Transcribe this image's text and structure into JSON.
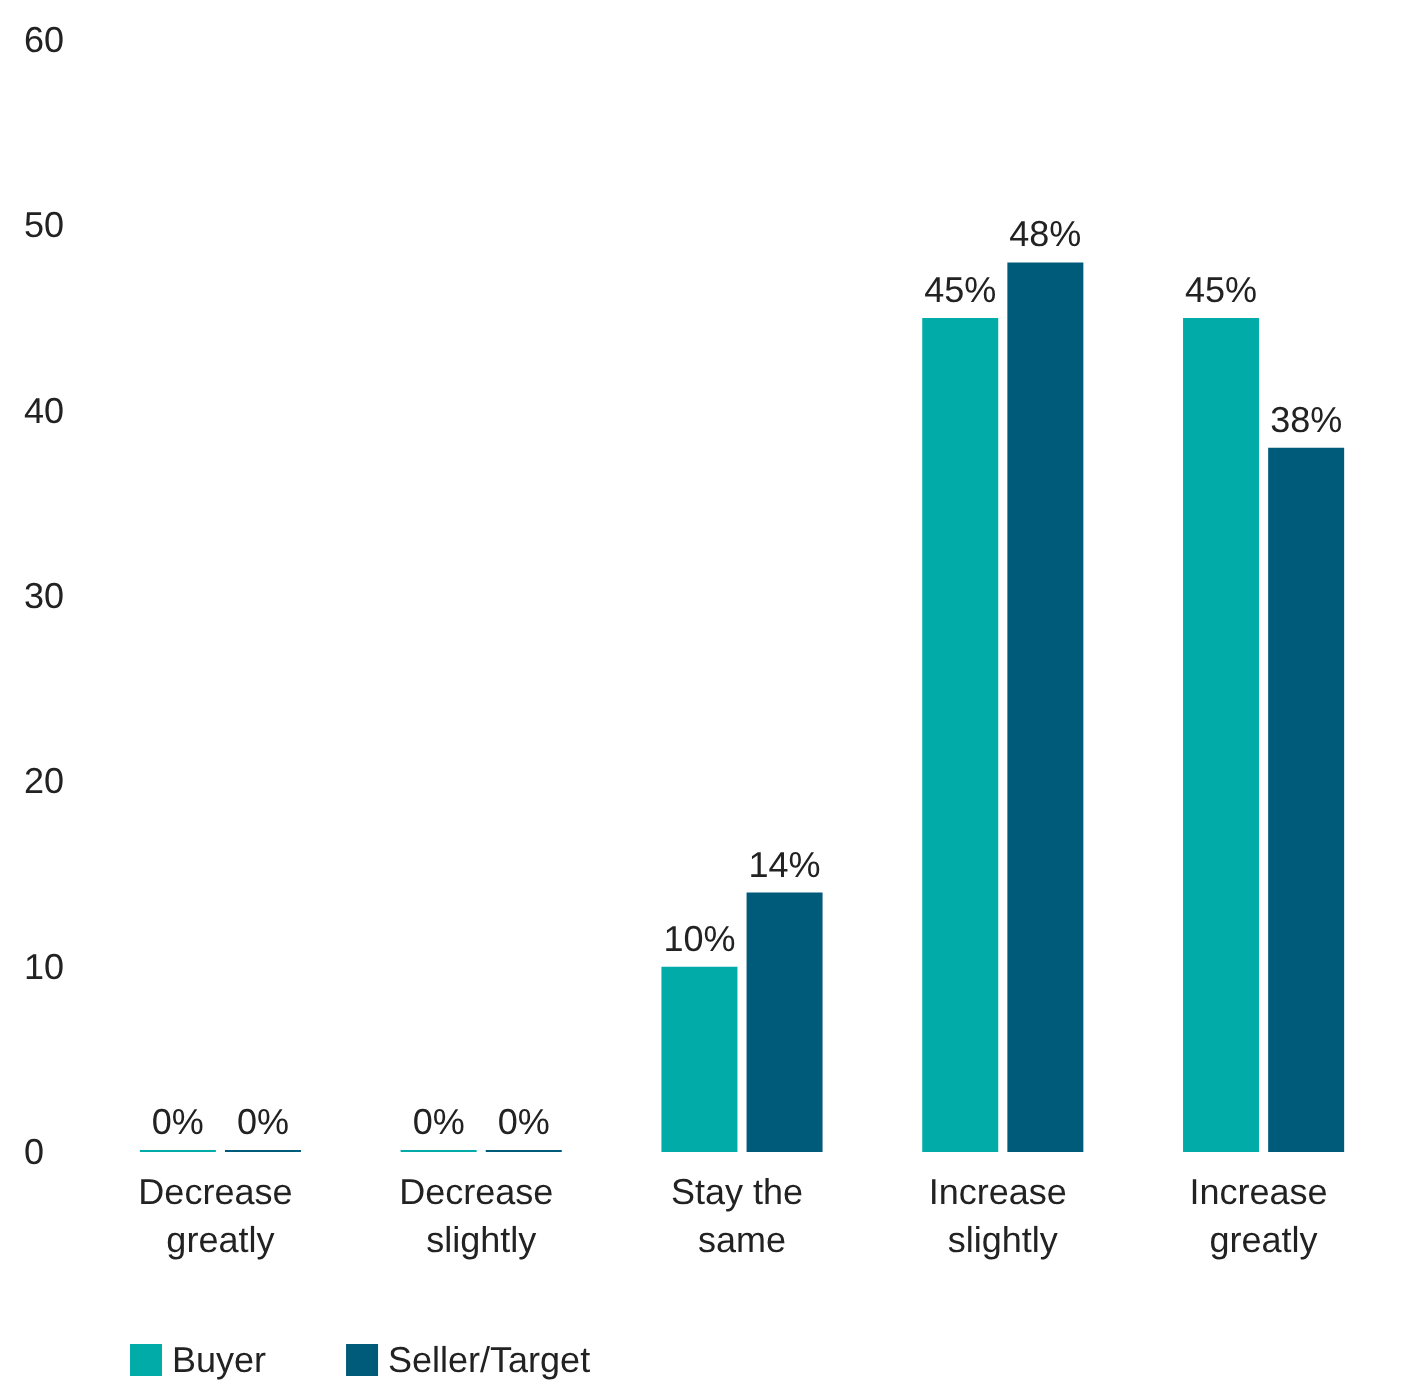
{
  "chart_data": {
    "type": "bar",
    "categories": [
      "Decrease greatly",
      "Decrease slightly",
      "Stay the same",
      "Increase slightly",
      "Increase greatly"
    ],
    "series": [
      {
        "name": "Buyer",
        "color": "#00aba8",
        "values": [
          0,
          0,
          10,
          45,
          45
        ],
        "value_labels": [
          "0%",
          "0%",
          "10%",
          "45%",
          "45%"
        ]
      },
      {
        "name": "Seller/Target",
        "color": "#005b7a",
        "values": [
          0,
          0,
          14,
          48,
          38
        ],
        "value_labels": [
          "0%",
          "0%",
          "14%",
          "48%",
          "38%"
        ]
      }
    ],
    "ylim": [
      0,
      60
    ],
    "yticks": [
      0,
      10,
      20,
      30,
      40,
      50,
      60
    ],
    "grid": false,
    "legend": "bottom left"
  }
}
